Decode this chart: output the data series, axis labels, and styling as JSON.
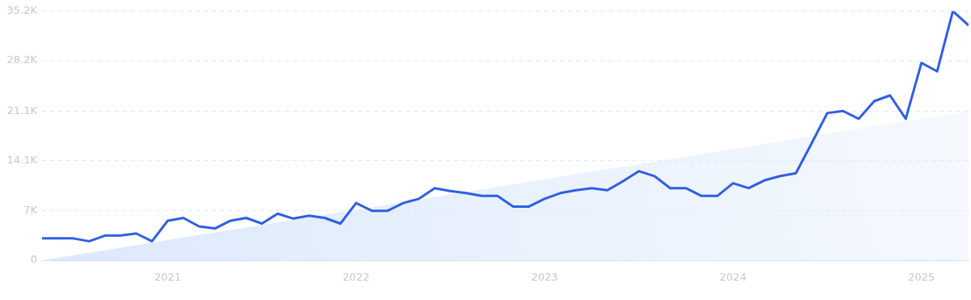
{
  "chart_data": {
    "type": "line",
    "grid": "y",
    "xlim": [
      "2020-05",
      "2025-04"
    ],
    "ylim": [
      0,
      35200
    ],
    "xticks": [
      "2021",
      "2022",
      "2023",
      "2024",
      "2025"
    ],
    "yticks": [
      0,
      {
        "value": 7000,
        "label": "7K"
      },
      {
        "value": 14100,
        "label": "14.1K"
      },
      {
        "value": 21100,
        "label": "21.1K"
      },
      {
        "value": 28200,
        "label": "28.2K"
      },
      {
        "value": 35200,
        "label": "35.2K"
      }
    ],
    "series": [
      {
        "type": "area",
        "color": "#dce9fb",
        "x": [
          "2020-05",
          "2025-04"
        ],
        "values": [
          0,
          21100
        ]
      },
      {
        "type": "line",
        "color": "#2f5fe3",
        "x": [
          "2020-05",
          "2020-06",
          "2020-07",
          "2020-08",
          "2020-09",
          "2020-10",
          "2020-11",
          "2020-12",
          "2021-01",
          "2021-02",
          "2021-03",
          "2021-04",
          "2021-05",
          "2021-06",
          "2021-07",
          "2021-08",
          "2021-09",
          "2021-10",
          "2021-11",
          "2021-12",
          "2022-01",
          "2022-02",
          "2022-03",
          "2022-04",
          "2022-05",
          "2022-06",
          "2022-07",
          "2022-08",
          "2022-09",
          "2022-10",
          "2022-11",
          "2022-12",
          "2023-01",
          "2023-02",
          "2023-03",
          "2023-04",
          "2023-05",
          "2023-06",
          "2023-07",
          "2023-08",
          "2023-09",
          "2023-10",
          "2023-11",
          "2023-12",
          "2024-01",
          "2024-02",
          "2024-03",
          "2024-04",
          "2024-05",
          "2024-06",
          "2024-07",
          "2024-08",
          "2024-09",
          "2024-10",
          "2024-11",
          "2024-12",
          "2025-01",
          "2025-02",
          "2025-03",
          "2025-04"
        ],
        "values": [
          3100,
          3100,
          3100,
          2700,
          3500,
          3500,
          3800,
          2700,
          5600,
          6000,
          4800,
          4500,
          5600,
          6000,
          5200,
          6600,
          5900,
          6300,
          6000,
          5200,
          8100,
          7000,
          7000,
          8100,
          8700,
          10200,
          9800,
          9500,
          9100,
          9100,
          7600,
          7600,
          8700,
          9500,
          9900,
          10200,
          9900,
          11200,
          12600,
          11900,
          10200,
          10200,
          9100,
          9100,
          10900,
          10200,
          11300,
          11900,
          12300,
          16500,
          20800,
          21100,
          20000,
          22500,
          23300,
          20000,
          27900,
          26700,
          35200,
          33200
        ]
      }
    ]
  }
}
